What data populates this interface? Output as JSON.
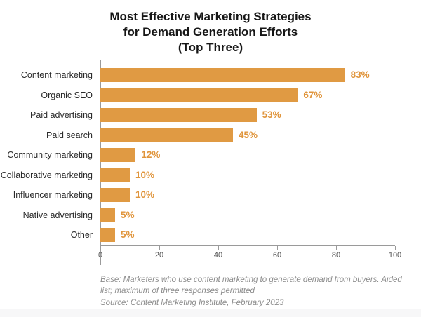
{
  "title": {
    "line1": "Most Effective Marketing Strategies",
    "line2": "for Demand Generation Efforts",
    "line3": "(Top Three)"
  },
  "chart_data": {
    "type": "bar",
    "orientation": "horizontal",
    "title": "Most Effective Marketing Strategies for Demand Generation Efforts (Top Three)",
    "categories": [
      "Content marketing",
      "Organic SEO",
      "Paid advertising",
      "Paid search",
      "Community marketing",
      "Collaborative marketing",
      "Influencer marketing",
      "Native advertising",
      "Other"
    ],
    "values": [
      83,
      67,
      53,
      45,
      12,
      10,
      10,
      5,
      5
    ],
    "value_labels": [
      "83%",
      "67%",
      "53%",
      "45%",
      "12%",
      "10%",
      "10%",
      "5%",
      "5%"
    ],
    "unit": "%",
    "xlim": [
      0,
      100
    ],
    "xticks": [
      0,
      20,
      40,
      60,
      80,
      100
    ],
    "grid": false,
    "legend": null,
    "bar_color": "#E09A43",
    "value_label_color": "#E0953C",
    "axis_color": "#9a9a9a"
  },
  "footer": {
    "base_line": "Base: Marketers who use content marketing to generate demand from buyers. Aided list; maximum of three responses permitted",
    "source_line": "Source: Content Marketing Institute, February 2023"
  }
}
